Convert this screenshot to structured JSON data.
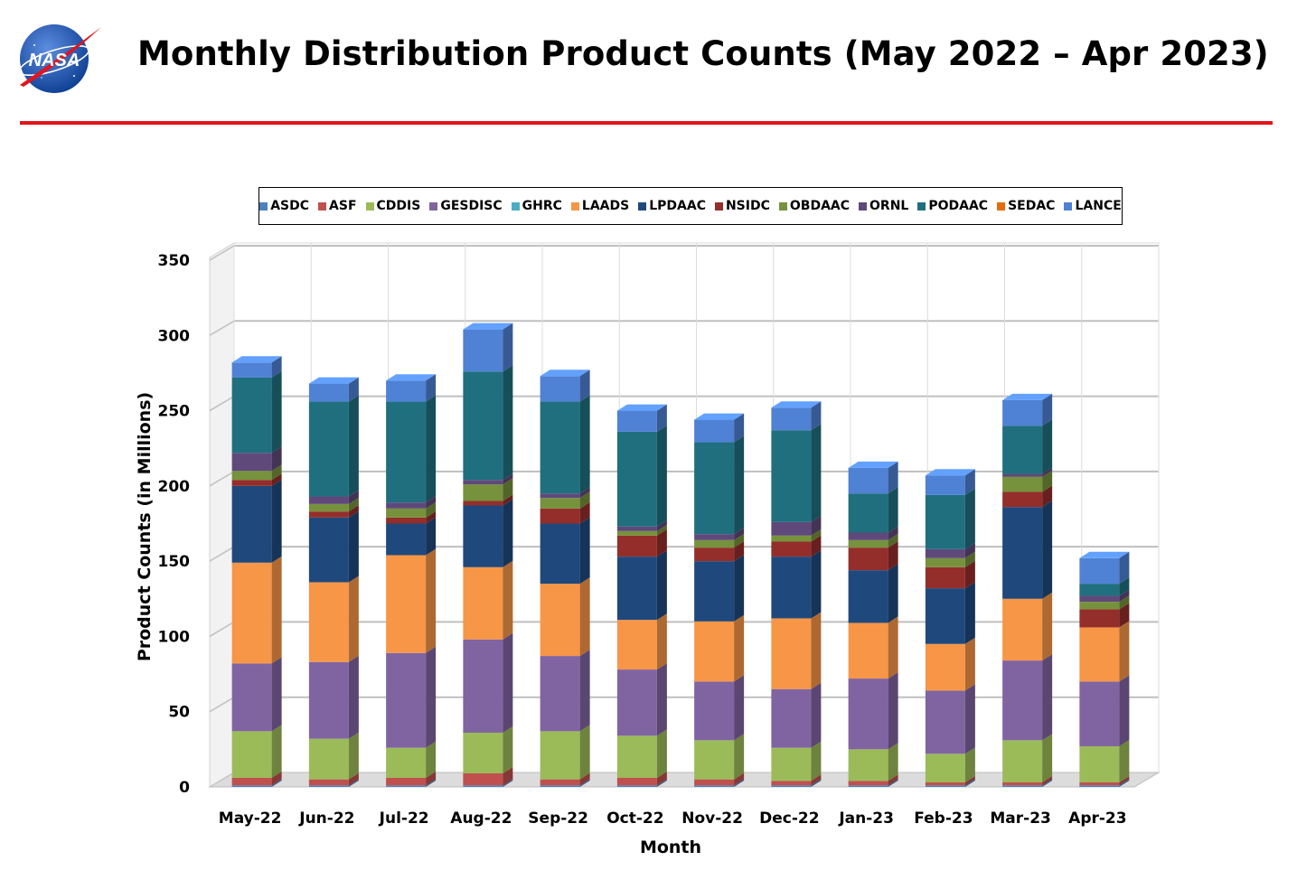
{
  "header": {
    "title": "Monthly Distribution Product Counts (May 2022 – Apr 2023)",
    "logo_text": "NASA"
  },
  "colors": {
    "rule": "#e3141b"
  },
  "chart_data": {
    "type": "bar",
    "stacked": true,
    "style": "3d",
    "title": "",
    "xlabel": "Month",
    "ylabel": "Product Counts (in Millions)",
    "ylim": [
      0,
      350
    ],
    "yticks": [
      0,
      50,
      100,
      150,
      200,
      250,
      300,
      350
    ],
    "grid": true,
    "legend_position": "top",
    "categories": [
      "May-22",
      "Jun-22",
      "Jul-22",
      "Aug-22",
      "Sep-22",
      "Oct-22",
      "Nov-22",
      "Dec-22",
      "Jan-23",
      "Feb-23",
      "Mar-23",
      "Apr-23"
    ],
    "series": [
      {
        "name": "ASDC",
        "color": "#4e81bd",
        "values": [
          1,
          1,
          1,
          1,
          1,
          1,
          1,
          1,
          1,
          1,
          1,
          1
        ]
      },
      {
        "name": "ASF",
        "color": "#c0504d",
        "values": [
          5,
          4,
          5,
          8,
          4,
          5,
          4,
          3,
          3,
          2,
          2,
          2
        ]
      },
      {
        "name": "CDDIS",
        "color": "#9bbb59",
        "values": [
          31,
          27,
          20,
          27,
          32,
          28,
          26,
          22,
          21,
          19,
          28,
          24
        ]
      },
      {
        "name": "GESDISC",
        "color": "#8064a2",
        "values": [
          45,
          51,
          63,
          62,
          50,
          44,
          39,
          39,
          47,
          42,
          53,
          43
        ]
      },
      {
        "name": "GHRC",
        "color": "#4bacc6",
        "values": [
          0,
          0,
          0,
          0,
          0,
          0,
          0,
          0,
          0,
          0,
          0,
          0
        ]
      },
      {
        "name": "LAADS",
        "color": "#f79646",
        "values": [
          67,
          53,
          65,
          48,
          48,
          33,
          40,
          47,
          37,
          31,
          41,
          36
        ]
      },
      {
        "name": "LPDAAC",
        "color": "#1f497d",
        "values": [
          51,
          43,
          21,
          41,
          40,
          42,
          40,
          41,
          35,
          37,
          61,
          0
        ]
      },
      {
        "name": "NSIDC",
        "color": "#942e2b",
        "values": [
          4,
          4,
          4,
          3,
          10,
          14,
          9,
          10,
          15,
          14,
          10,
          12
        ]
      },
      {
        "name": "OBDAAC",
        "color": "#76923c",
        "values": [
          6,
          5,
          6,
          11,
          7,
          3,
          5,
          4,
          5,
          6,
          10,
          5
        ]
      },
      {
        "name": "ORNL",
        "color": "#5f497a",
        "values": [
          12,
          5,
          4,
          3,
          3,
          3,
          4,
          9,
          5,
          6,
          2,
          4
        ]
      },
      {
        "name": "PODAAC",
        "color": "#1f6f7f",
        "values": [
          50,
          63,
          67,
          72,
          61,
          63,
          61,
          61,
          26,
          36,
          32,
          8
        ]
      },
      {
        "name": "SEDAC",
        "color": "#e46c0a",
        "values": [
          0,
          0,
          0,
          0,
          0,
          0,
          0,
          0,
          0,
          0,
          0,
          0
        ]
      },
      {
        "name": "LANCE",
        "color": "#4f81d4",
        "values": [
          10,
          12,
          14,
          28,
          17,
          14,
          15,
          15,
          17,
          13,
          17,
          17
        ]
      }
    ]
  }
}
